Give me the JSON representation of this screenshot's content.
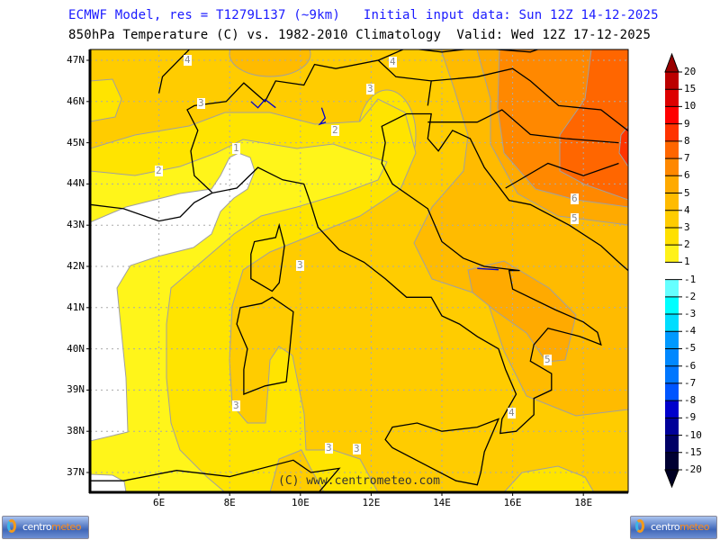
{
  "header": {
    "line1": "ECMWF Model, res = T1279L137 (~9km)   Initial input data: Sun 12Z 14-12-2025",
    "line2": "850hPa Temperature (C) vs. 1982-2010 Climatology  Valid: Wed 12Z 17-12-2025"
  },
  "map": {
    "lat_labels": [
      "47N",
      "46N",
      "45N",
      "44N",
      "43N",
      "42N",
      "41N",
      "40N",
      "39N",
      "38N",
      "37N"
    ],
    "lon_labels": [
      "6E",
      "8E",
      "10E",
      "12E",
      "14E",
      "16E",
      "18E"
    ],
    "contour_labels": [
      "4",
      "4",
      "3",
      "3",
      "2",
      "1",
      "2",
      "3",
      "6",
      "5",
      "5",
      "4",
      "3",
      "3",
      "3"
    ],
    "copyright": "(C) www.centrometeo.com",
    "fill_colors": {
      "below_1": "#ffffff",
      "1_2": "#fff51a",
      "2_3": "#ffe400",
      "3_4": "#ffcc00",
      "4_5": "#ffbb00",
      "5_6": "#ffaa00",
      "6_7": "#ff8800",
      "7_8": "#ff6600",
      "8_9": "#ff3300"
    },
    "coastline_color": "#000000",
    "lake_color": "#0000cc",
    "contour_color": "#a0a0a0"
  },
  "colorbar": {
    "labels": [
      "20",
      "15",
      "10",
      "9",
      "8",
      "7",
      "6",
      "5",
      "4",
      "3",
      "2",
      "1",
      "-1",
      "-2",
      "-3",
      "-4",
      "-5",
      "-6",
      "-7",
      "-8",
      "-9",
      "-10",
      "-15",
      "-20"
    ],
    "colors": [
      "#bb0000",
      "#dd0000",
      "#ff0000",
      "#ff3300",
      "#ff6600",
      "#ff8800",
      "#ffaa00",
      "#ffbb00",
      "#ffcc00",
      "#ffe000",
      "#fff21a",
      "#ffffff",
      "#66ffff",
      "#00ffff",
      "#00ddff",
      "#0099ff",
      "#0088ff",
      "#0077ff",
      "#0055ff",
      "#0000cc",
      "#000099",
      "#000066",
      "#000033"
    ],
    "top_arrow_color": "#990000",
    "bottom_arrow_color": "#000022"
  },
  "logos": {
    "part1": "centro",
    "part2": "meteo"
  }
}
